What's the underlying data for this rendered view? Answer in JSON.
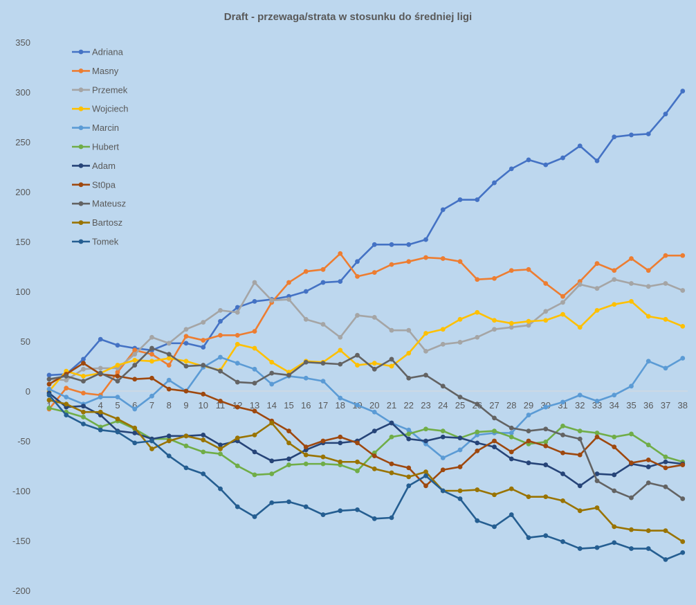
{
  "chart_data": {
    "type": "line",
    "title": "Draft - przewaga/strata w stosunku do średniej ligi",
    "xlabel": "",
    "ylabel": "",
    "ylim": [
      -200,
      350
    ],
    "yticks": [
      350,
      300,
      250,
      200,
      150,
      100,
      50,
      0,
      -50,
      -100,
      -150,
      -200
    ],
    "grid": false,
    "legend_position": "top-left",
    "x": [
      1,
      2,
      3,
      4,
      5,
      6,
      7,
      8,
      9,
      10,
      11,
      12,
      13,
      14,
      15,
      16,
      17,
      18,
      19,
      20,
      21,
      22,
      23,
      24,
      25,
      26,
      27,
      28,
      29,
      30,
      31,
      32,
      33,
      34,
      35,
      36,
      37,
      38
    ],
    "series": [
      {
        "name": "Adriana",
        "color": "#4472c4",
        "values": [
          16,
          17,
          32,
          52,
          46,
          43,
          41,
          48,
          48,
          44,
          70,
          84,
          90,
          92,
          95,
          100,
          109,
          110,
          130,
          147,
          147,
          147,
          152,
          182,
          192,
          192,
          209,
          223,
          232,
          227,
          234,
          246,
          231,
          255,
          257,
          258,
          278,
          301
        ]
      },
      {
        "name": "Masny",
        "color": "#ed7d31",
        "values": [
          -18,
          3,
          -2,
          -4,
          19,
          41,
          37,
          26,
          55,
          51,
          56,
          56,
          60,
          89,
          109,
          120,
          122,
          138,
          115,
          119,
          127,
          130,
          134,
          133,
          130,
          112,
          113,
          121,
          122,
          108,
          95,
          110,
          128,
          121,
          133,
          121,
          136,
          136
        ]
      },
      {
        "name": "Przemek",
        "color": "#a5a5a5",
        "values": [
          12,
          11,
          22,
          23,
          23,
          37,
          54,
          48,
          62,
          69,
          81,
          79,
          109,
          91,
          92,
          72,
          67,
          54,
          76,
          74,
          61,
          61,
          40,
          47,
          49,
          54,
          62,
          64,
          66,
          80,
          89,
          107,
          103,
          112,
          108,
          105,
          108,
          101
        ]
      },
      {
        "name": "Wojciech",
        "color": "#ffc000",
        "values": [
          0,
          20,
          15,
          18,
          26,
          31,
          30,
          33,
          30,
          25,
          21,
          47,
          43,
          29,
          19,
          30,
          29,
          41,
          26,
          28,
          25,
          38,
          58,
          62,
          72,
          79,
          71,
          68,
          70,
          71,
          77,
          64,
          81,
          87,
          90,
          75,
          72,
          65
        ]
      },
      {
        "name": "Marcin",
        "color": "#5b9bd5",
        "values": [
          2,
          -6,
          -13,
          -6,
          -6,
          -18,
          -5,
          11,
          0,
          24,
          34,
          28,
          22,
          7,
          15,
          13,
          10,
          -7,
          -14,
          -21,
          -32,
          -39,
          -53,
          -67,
          -59,
          -44,
          -42,
          -42,
          -24,
          -16,
          -11,
          -4,
          -10,
          -4,
          5,
          30,
          23,
          33
        ]
      },
      {
        "name": "Hubert",
        "color": "#70ad47",
        "values": [
          -17,
          -21,
          -26,
          -36,
          -30,
          -38,
          -48,
          -48,
          -55,
          -61,
          -63,
          -75,
          -84,
          -83,
          -74,
          -73,
          -73,
          -74,
          -80,
          -62,
          -46,
          -43,
          -38,
          -40,
          -47,
          -41,
          -40,
          -46,
          -53,
          -51,
          -35,
          -40,
          -42,
          -46,
          -43,
          -54,
          -66,
          -71
        ]
      },
      {
        "name": "Adam",
        "color": "#264478",
        "values": [
          -2,
          -16,
          -15,
          -24,
          -40,
          -42,
          -48,
          -45,
          -45,
          -44,
          -54,
          -50,
          -61,
          -70,
          -68,
          -59,
          -52,
          -52,
          -50,
          -40,
          -32,
          -48,
          -50,
          -46,
          -47,
          -52,
          -56,
          -68,
          -72,
          -74,
          -83,
          -95,
          -83,
          -84,
          -73,
          -76,
          -71,
          -73
        ]
      },
      {
        "name": "St0pa",
        "color": "#9e480e",
        "values": [
          7,
          17,
          28,
          17,
          15,
          12,
          13,
          2,
          0,
          -3,
          -10,
          -16,
          -20,
          -30,
          -40,
          -56,
          -50,
          -46,
          -52,
          -65,
          -73,
          -77,
          -95,
          -79,
          -76,
          -60,
          -50,
          -61,
          -50,
          -55,
          -62,
          -64,
          -46,
          -56,
          -72,
          -69,
          -77,
          -74
        ]
      },
      {
        "name": "Mateusz",
        "color": "#636363",
        "values": [
          12,
          15,
          10,
          18,
          10,
          26,
          43,
          37,
          25,
          26,
          20,
          9,
          8,
          18,
          16,
          29,
          28,
          27,
          36,
          22,
          32,
          13,
          16,
          5,
          -6,
          -13,
          -27,
          -37,
          -40,
          -38,
          -44,
          -48,
          -90,
          -100,
          -107,
          -92,
          -96,
          -108
        ]
      },
      {
        "name": "Bartosz",
        "color": "#997300",
        "values": [
          -9,
          -13,
          -21,
          -21,
          -28,
          -37,
          -58,
          -50,
          -45,
          -49,
          -58,
          -47,
          -44,
          -32,
          -52,
          -64,
          -66,
          -71,
          -71,
          -78,
          -82,
          -86,
          -81,
          -100,
          -100,
          -99,
          -104,
          -98,
          -106,
          -106,
          -110,
          -120,
          -117,
          -136,
          -139,
          -140,
          -140,
          -151
        ]
      },
      {
        "name": "Tomek",
        "color": "#255e91",
        "values": [
          -4,
          -24,
          -33,
          -39,
          -41,
          -52,
          -50,
          -65,
          -77,
          -83,
          -98,
          -116,
          -126,
          -112,
          -111,
          -116,
          -124,
          -120,
          -119,
          -128,
          -127,
          -95,
          -85,
          -100,
          -108,
          -130,
          -136,
          -124,
          -147,
          -145,
          -151,
          -158,
          -157,
          -152,
          -158,
          -158,
          -169,
          -162
        ]
      }
    ]
  }
}
